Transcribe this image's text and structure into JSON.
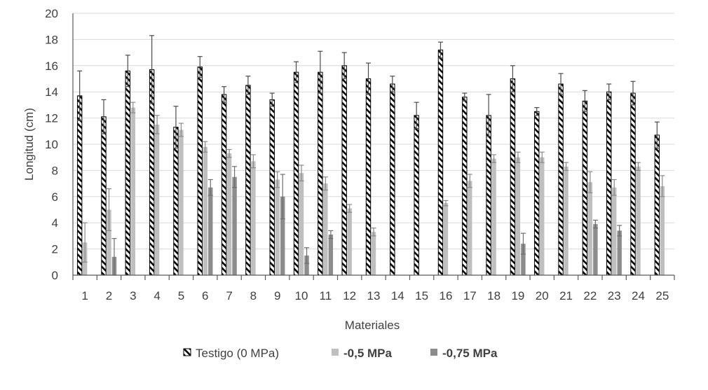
{
  "chart_data": {
    "type": "bar",
    "title": "",
    "xlabel": "Materiales",
    "ylabel": "Longitud (cm)",
    "ylim": [
      0,
      20
    ],
    "yticks": [
      0,
      2,
      4,
      6,
      8,
      10,
      12,
      14,
      16,
      18,
      20
    ],
    "grid": true,
    "legend_position": "bottom",
    "error_bars": true,
    "categories": [
      "1",
      "2",
      "3",
      "4",
      "5",
      "6",
      "7",
      "8",
      "9",
      "10",
      "11",
      "12",
      "13",
      "14",
      "15",
      "16",
      "17",
      "18",
      "19",
      "20",
      "21",
      "22",
      "23",
      "24",
      "25"
    ],
    "series": [
      {
        "name": "Testigo (0 MPa)",
        "pattern": "black-white-diagonal-hatch",
        "values": [
          13.7,
          12.1,
          15.6,
          15.7,
          11.3,
          15.9,
          13.8,
          14.5,
          13.4,
          15.5,
          15.5,
          16.0,
          15.0,
          14.6,
          12.2,
          17.2,
          13.6,
          12.2,
          15.0,
          12.5,
          14.6,
          13.3,
          14.0,
          13.9,
          10.7
        ],
        "errors": [
          1.9,
          1.3,
          1.2,
          2.6,
          1.6,
          0.8,
          0.6,
          0.7,
          0.5,
          0.8,
          1.6,
          1.0,
          1.2,
          0.6,
          1.0,
          0.6,
          0.3,
          1.6,
          1.0,
          0.3,
          0.8,
          0.8,
          0.6,
          0.9,
          1.0
        ]
      },
      {
        "name": "-0,5 MPa",
        "color": "#bfbfbf",
        "values": [
          2.5,
          5.0,
          12.8,
          11.5,
          11.1,
          9.8,
          9.3,
          8.7,
          7.3,
          7.8,
          7.0,
          5.1,
          3.3,
          null,
          null,
          5.5,
          7.2,
          8.9,
          9.0,
          9.0,
          8.3,
          7.1,
          6.7,
          8.3,
          6.8
        ],
        "errors": [
          1.5,
          1.6,
          0.4,
          0.7,
          0.5,
          0.4,
          0.3,
          0.5,
          0.6,
          0.6,
          0.5,
          0.3,
          0.3,
          null,
          null,
          0.2,
          0.5,
          0.3,
          0.4,
          0.4,
          0.3,
          0.8,
          0.6,
          0.3,
          0.8
        ]
      },
      {
        "name": "-0,75 MPa",
        "color": "#8c8c8c",
        "values": [
          null,
          1.4,
          null,
          null,
          null,
          6.7,
          7.5,
          null,
          6.0,
          1.5,
          3.1,
          null,
          null,
          null,
          null,
          null,
          null,
          null,
          2.4,
          null,
          null,
          3.9,
          3.4,
          null,
          null
        ],
        "errors": [
          null,
          1.4,
          null,
          null,
          null,
          0.6,
          0.8,
          null,
          1.7,
          0.6,
          0.3,
          null,
          null,
          null,
          null,
          null,
          null,
          null,
          0.8,
          null,
          null,
          0.3,
          0.4,
          null,
          null
        ]
      }
    ]
  }
}
